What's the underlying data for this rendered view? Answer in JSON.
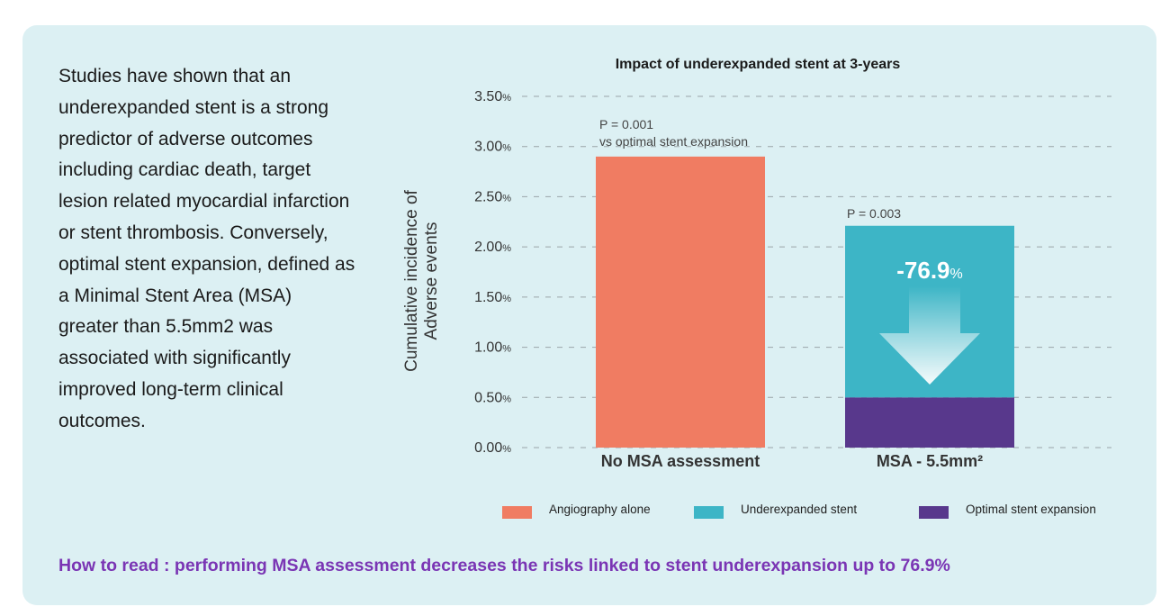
{
  "intro_text": "Studies have shown that an underexpanded stent is a strong predictor of adverse outcomes including cardiac death, target lesion related myocardial infarction or stent thrombosis. Conversely, optimal stent expansion, defined as a Minimal Stent Area (MSA) greater than 5.5mm2 was associated with significantly improved long-term clinical outcomes.",
  "how_to_read": "How to read : performing MSA assessment decreases the risks linked to stent underexpansion up to 76.9%",
  "colors": {
    "angiography": "#f07c62",
    "underexpanded": "#3db5c6",
    "optimal": "#58388c",
    "card_bg": "#dcf0f3",
    "accent_text": "#7a35b4"
  },
  "chart_data": {
    "type": "bar",
    "title": "Impact of underexpanded stent at 3-years",
    "ylabel_line1": "Cumulative incidence of",
    "ylabel_line2": "Adverse events",
    "ylim": [
      0,
      3.5
    ],
    "yticks": [
      {
        "num": "0.00",
        "unit": "%"
      },
      {
        "num": "0.50",
        "unit": "%"
      },
      {
        "num": "1.00",
        "unit": "%"
      },
      {
        "num": "1.50",
        "unit": "%"
      },
      {
        "num": "2.00",
        "unit": "%"
      },
      {
        "num": "2.50",
        "unit": "%"
      },
      {
        "num": "3.00",
        "unit": "%"
      },
      {
        "num": "3.50",
        "unit": "%"
      }
    ],
    "grid": true,
    "categories": [
      "No MSA assessment",
      "MSA - 5.5mm²"
    ],
    "series": [
      {
        "name": "Angiography alone",
        "values": [
          2.9,
          0
        ]
      },
      {
        "name": "Underexpanded stent",
        "values": [
          0,
          1.71
        ]
      },
      {
        "name": "Optimal stent expansion",
        "values": [
          0,
          0.5
        ]
      }
    ],
    "stacked": true,
    "annotations": {
      "bar1_p_line1": "P = 0.001",
      "bar1_p_line2": "vs optimal stent expansion",
      "bar2_p": "P = 0.003",
      "reduction_value": "-76.9",
      "reduction_unit": "%"
    },
    "legend_placement": "bottom"
  }
}
